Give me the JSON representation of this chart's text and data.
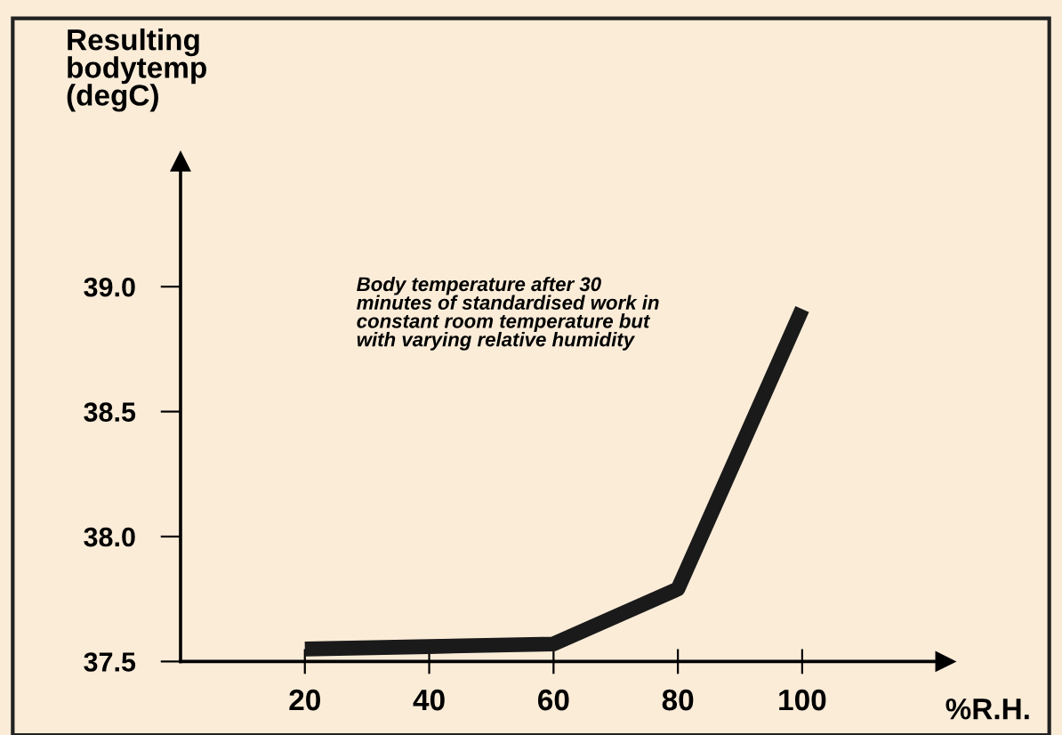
{
  "chart_data": {
    "type": "line",
    "xlabel": "%R.H.",
    "ylabel": "Resulting\nbodytemp\n(degC)",
    "x": [
      20,
      40,
      60,
      80,
      100
    ],
    "series": [
      {
        "color": "#1a1a1a",
        "values": [
          37.55,
          37.56,
          37.57,
          37.79,
          38.91
        ]
      }
    ],
    "xlim": [
      0,
      123
    ],
    "ylim": [
      37.5,
      39.5
    ],
    "xticks": [
      20,
      40,
      60,
      80,
      100
    ],
    "yticks": [
      37.5,
      {
        "value": 38,
        "label": "38.0"
      },
      38.5,
      {
        "value": 39,
        "label": "39.0"
      }
    ],
    "grid": false,
    "legend": false,
    "marker": "none",
    "line_style": "solid",
    "annotations": [
      "Body temperature after 30\nminutes of standardised work in\nconstant room temperature but\nwith varying relative humidity"
    ]
  }
}
